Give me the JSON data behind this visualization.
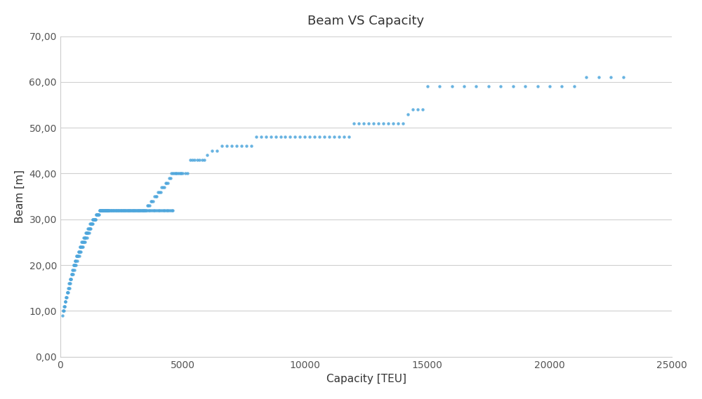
{
  "title": "Beam VS Capacity",
  "xlabel": "Capacity [TEU]",
  "ylabel": "Beam [m]",
  "xlim": [
    0,
    25000
  ],
  "ylim": [
    0,
    70
  ],
  "xticks": [
    0,
    5000,
    10000,
    15000,
    20000,
    25000
  ],
  "yticks": [
    0,
    10,
    20,
    30,
    40,
    50,
    60,
    70
  ],
  "ytick_labels": [
    "0,00",
    "10,00",
    "20,00",
    "30,00",
    "40,00",
    "50,00",
    "60,00",
    "70,00"
  ],
  "xtick_labels": [
    "0",
    "5000",
    "10000",
    "15000",
    "20000",
    "25000"
  ],
  "dot_color": "#4ea6dc",
  "background_color": "#ffffff",
  "capacity": [
    100,
    120,
    140,
    160,
    180,
    200,
    220,
    240,
    260,
    280,
    300,
    320,
    340,
    360,
    380,
    400,
    420,
    440,
    460,
    480,
    500,
    520,
    540,
    560,
    580,
    600,
    620,
    640,
    660,
    680,
    700,
    720,
    740,
    760,
    780,
    800,
    820,
    840,
    860,
    880,
    900,
    920,
    940,
    960,
    980,
    1000,
    1020,
    1040,
    1060,
    1080,
    1100,
    1120,
    1140,
    1160,
    1180,
    1200,
    1220,
    1240,
    1260,
    1280,
    1300,
    1320,
    1340,
    1360,
    1380,
    1400,
    1420,
    1440,
    1460,
    1480,
    1500,
    1520,
    1540,
    1560,
    1580,
    1600,
    1620,
    1640,
    1660,
    1680,
    1700,
    1720,
    1740,
    1760,
    1780,
    1800,
    1820,
    1840,
    1860,
    1880,
    1900,
    1920,
    1940,
    1960,
    1980,
    2000,
    2050,
    2100,
    2150,
    2200,
    2250,
    2300,
    2350,
    2400,
    2450,
    2500,
    2550,
    2600,
    2650,
    2700,
    2750,
    2800,
    2850,
    2900,
    2950,
    3000,
    3050,
    3100,
    3150,
    3200,
    3250,
    3300,
    3350,
    3400,
    3450,
    3500,
    3550,
    3600,
    3650,
    3700,
    3750,
    3800,
    3850,
    3900,
    3950,
    4000,
    4050,
    4100,
    4150,
    4200,
    4250,
    4300,
    4350,
    4400,
    4450,
    4500,
    4550,
    4600,
    4650,
    4700,
    4750,
    4800,
    4850,
    4900,
    4950,
    5000,
    5100,
    5200,
    5300,
    5400,
    5500,
    5600,
    5700,
    5800,
    5900,
    6000,
    6200,
    6400,
    6600,
    6800,
    7000,
    7200,
    7400,
    7600,
    7800,
    8000,
    8200,
    8400,
    8600,
    8800,
    9000,
    9200,
    9400,
    9600,
    9800,
    10000,
    10200,
    10400,
    10600,
    10800,
    11000,
    11200,
    11400,
    11600,
    11800,
    12000,
    12200,
    12400,
    12600,
    12800,
    13000,
    13200,
    13400,
    13600,
    13800,
    14000,
    14200,
    14400,
    14600,
    14800,
    15000,
    15500,
    16000,
    16500,
    17000,
    17500,
    18000,
    18500,
    19000,
    19500,
    20000,
    20500,
    21000,
    21500,
    22000,
    22500,
    23000,
    130,
    170,
    210,
    250,
    290,
    330,
    370,
    410,
    450,
    490,
    530,
    570,
    610,
    650,
    690,
    730,
    770,
    810,
    850,
    890,
    930,
    970,
    1010,
    1050,
    1090,
    1130,
    1170,
    1210,
    1250,
    1290,
    1330,
    1370,
    1410,
    1450,
    1490,
    1530,
    1570,
    1610,
    1650,
    1690,
    1730,
    1770,
    1810,
    1850,
    1890,
    1930,
    1970,
    2010,
    2060,
    2110,
    2160,
    2210,
    2260,
    2310,
    2360,
    2410,
    2460,
    2510,
    2560,
    2610,
    2660,
    2710,
    2760,
    2810,
    2860,
    2910,
    2960,
    3010,
    3060,
    3110,
    3160,
    3210,
    3260,
    3310,
    3360,
    3410,
    3460,
    3510,
    3560,
    3610,
    3660,
    3710,
    3760,
    3810,
    3860,
    3910,
    3960,
    4010,
    4060,
    4110,
    4160,
    4210,
    4260,
    4310,
    4360,
    4410,
    4460,
    4510,
    4560,
    4610
  ],
  "beam": [
    9,
    10,
    10,
    11,
    11,
    12,
    12,
    13,
    13,
    14,
    14,
    15,
    15,
    16,
    16,
    17,
    17,
    17,
    18,
    18,
    19,
    19,
    20,
    20,
    20,
    21,
    21,
    21,
    22,
    22,
    22,
    22,
    23,
    23,
    23,
    24,
    24,
    24,
    24,
    25,
    25,
    25,
    25,
    26,
    26,
    26,
    26,
    27,
    27,
    27,
    27,
    27,
    28,
    28,
    28,
    28,
    29,
    29,
    29,
    29,
    29,
    30,
    30,
    30,
    30,
    30,
    30,
    30,
    31,
    31,
    31,
    31,
    31,
    31,
    31,
    32,
    32,
    32,
    32,
    32,
    32,
    32,
    32,
    32,
    32,
    32,
    32,
    32,
    32,
    32,
    32,
    32,
    32,
    32,
    32,
    32,
    32,
    32,
    32,
    32,
    32,
    32,
    32,
    32,
    32,
    32,
    32,
    32,
    32,
    32,
    32,
    32,
    32,
    32,
    32,
    32,
    32,
    32,
    32,
    32,
    32,
    32,
    32,
    32,
    32,
    32,
    33,
    33,
    33,
    34,
    34,
    34,
    35,
    35,
    35,
    36,
    36,
    36,
    37,
    37,
    37,
    38,
    38,
    38,
    39,
    39,
    40,
    40,
    40,
    40,
    40,
    40,
    40,
    40,
    40,
    40,
    40,
    40,
    43,
    43,
    43,
    43,
    43,
    43,
    43,
    44,
    45,
    45,
    46,
    46,
    46,
    46,
    46,
    46,
    46,
    48,
    48,
    48,
    48,
    48,
    48,
    48,
    48,
    48,
    48,
    48,
    48,
    48,
    48,
    48,
    48,
    48,
    48,
    48,
    48,
    51,
    51,
    51,
    51,
    51,
    51,
    51,
    51,
    51,
    51,
    51,
    53,
    54,
    54,
    54,
    59,
    59,
    59,
    59,
    59,
    59,
    59,
    59,
    59,
    59,
    59,
    59,
    59,
    61,
    61,
    61,
    61,
    10,
    11,
    12,
    13,
    14,
    14,
    15,
    16,
    17,
    18,
    18,
    19,
    20,
    20,
    21,
    22,
    22,
    23,
    23,
    24,
    24,
    25,
    25,
    26,
    26,
    27,
    27,
    28,
    28,
    29,
    29,
    30,
    30,
    30,
    31,
    31,
    31,
    32,
    32,
    32,
    32,
    32,
    32,
    32,
    32,
    32,
    32,
    32,
    32,
    32,
    32,
    32,
    32,
    32,
    32,
    32,
    32,
    32,
    32,
    32,
    32,
    32,
    32,
    32,
    32,
    32,
    32,
    32,
    32,
    32,
    32,
    32,
    32,
    32,
    32,
    32,
    32,
    32,
    32,
    32,
    32,
    32,
    32,
    32,
    32,
    32,
    32,
    32,
    32,
    32,
    32,
    32,
    32,
    32,
    32,
    32,
    32,
    32,
    32,
    32
  ]
}
